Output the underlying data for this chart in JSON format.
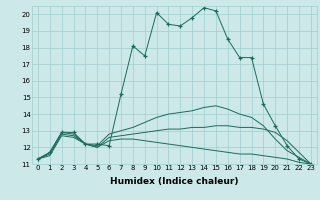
{
  "xlabel": "Humidex (Indice chaleur)",
  "bg_color": "#cce8e8",
  "grid_color": "#9fcfcf",
  "line_color": "#1a6b5a",
  "xlim": [
    -0.5,
    23.5
  ],
  "ylim": [
    11,
    20.5
  ],
  "lines": [
    {
      "x": [
        0,
        1,
        2,
        3,
        4,
        5,
        6,
        7,
        8,
        9,
        10,
        11,
        12,
        13,
        14,
        15,
        16,
        17,
        18,
        19,
        20,
        21,
        22,
        23
      ],
      "y": [
        11.3,
        11.7,
        12.9,
        12.9,
        12.2,
        12.2,
        12.1,
        15.2,
        18.1,
        17.5,
        20.1,
        19.4,
        19.3,
        19.8,
        20.4,
        20.2,
        18.5,
        17.4,
        17.4,
        14.6,
        13.3,
        12.1,
        11.3,
        11.0
      ],
      "marker": "+"
    },
    {
      "x": [
        0,
        1,
        2,
        3,
        4,
        5,
        6,
        7,
        8,
        9,
        10,
        11,
        12,
        13,
        14,
        15,
        16,
        17,
        18,
        19,
        20,
        21,
        22,
        23
      ],
      "y": [
        11.3,
        11.7,
        12.9,
        12.8,
        12.2,
        12.1,
        12.8,
        13.0,
        13.2,
        13.5,
        13.8,
        14.0,
        14.1,
        14.2,
        14.4,
        14.5,
        14.3,
        14.0,
        13.8,
        13.3,
        12.5,
        11.8,
        11.4,
        11.0
      ],
      "marker": null
    },
    {
      "x": [
        0,
        1,
        2,
        3,
        4,
        5,
        6,
        7,
        8,
        9,
        10,
        11,
        12,
        13,
        14,
        15,
        16,
        17,
        18,
        19,
        20,
        21,
        22,
        23
      ],
      "y": [
        11.3,
        11.6,
        12.8,
        12.7,
        12.2,
        12.0,
        12.6,
        12.7,
        12.8,
        12.9,
        13.0,
        13.1,
        13.1,
        13.2,
        13.2,
        13.3,
        13.3,
        13.2,
        13.2,
        13.1,
        12.9,
        12.4,
        11.7,
        11.0
      ],
      "marker": null
    },
    {
      "x": [
        0,
        1,
        2,
        3,
        4,
        5,
        6,
        7,
        8,
        9,
        10,
        11,
        12,
        13,
        14,
        15,
        16,
        17,
        18,
        19,
        20,
        21,
        22,
        23
      ],
      "y": [
        11.3,
        11.5,
        12.7,
        12.6,
        12.2,
        12.0,
        12.4,
        12.5,
        12.5,
        12.4,
        12.3,
        12.2,
        12.1,
        12.0,
        11.9,
        11.8,
        11.7,
        11.6,
        11.6,
        11.5,
        11.4,
        11.3,
        11.1,
        11.0
      ],
      "marker": null
    }
  ],
  "xticks": [
    0,
    1,
    2,
    3,
    4,
    5,
    6,
    7,
    8,
    9,
    10,
    11,
    12,
    13,
    14,
    15,
    16,
    17,
    18,
    19,
    20,
    21,
    22,
    23
  ],
  "yticks": [
    11,
    12,
    13,
    14,
    15,
    16,
    17,
    18,
    19,
    20
  ],
  "tick_fontsize": 5,
  "xlabel_fontsize": 6.5
}
